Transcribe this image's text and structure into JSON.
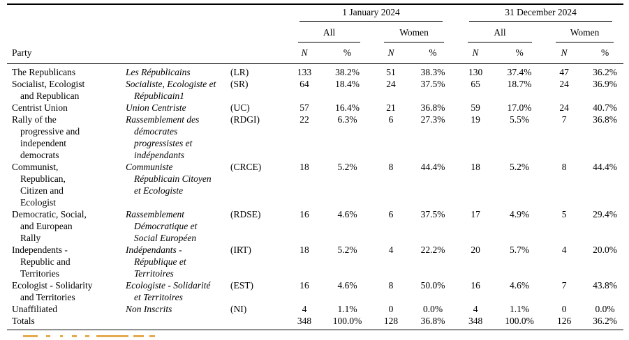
{
  "table": {
    "party_header": "Party",
    "group_headers": [
      "1 January 2024",
      "31 December 2024"
    ],
    "sub_headers": [
      "All",
      "Women",
      "All",
      "Women"
    ],
    "col_headers": [
      "N",
      "%",
      "N",
      "%",
      "N",
      "%",
      "N",
      "%"
    ],
    "rows": [
      {
        "english": [
          "The Republicans"
        ],
        "french": [
          "Les Républicains"
        ],
        "abbr": "(LR)",
        "values": [
          "133",
          "38.2%",
          "51",
          "38.3%",
          "130",
          "37.4%",
          "47",
          "36.2%"
        ]
      },
      {
        "english": [
          "Socialist, Ecologist",
          "and Republican"
        ],
        "french": [
          "Socialiste, Ecologiste et",
          "Républicain1"
        ],
        "abbr": "(SR)",
        "values": [
          "64",
          "18.4%",
          "24",
          "37.5%",
          "65",
          "18.7%",
          "24",
          "36.9%"
        ]
      },
      {
        "english": [
          "Centrist Union"
        ],
        "french": [
          "Union Centriste"
        ],
        "abbr": "(UC)",
        "values": [
          "57",
          "16.4%",
          "21",
          "36.8%",
          "59",
          "17.0%",
          "24",
          "40.7%"
        ]
      },
      {
        "english": [
          "Rally of the",
          "progressive and",
          "independent",
          "democrats"
        ],
        "french": [
          "Rassemblement des",
          "démocrates",
          "progressistes et",
          "indépendants"
        ],
        "abbr": "(RDGI)",
        "values": [
          "22",
          "6.3%",
          "6",
          "27.3%",
          "19",
          "5.5%",
          "7",
          "36.8%"
        ]
      },
      {
        "english": [
          "Communist,",
          "Republican,",
          "Citizen and",
          "Ecologist"
        ],
        "french": [
          "Communiste",
          "Républicain Citoyen",
          "et Ecologiste"
        ],
        "abbr": "(CRCE)",
        "values": [
          "18",
          "5.2%",
          "8",
          "44.4%",
          "18",
          "5.2%",
          "8",
          "44.4%"
        ]
      },
      {
        "english": [
          "Democratic, Social,",
          "and European",
          "Rally"
        ],
        "french": [
          "Rassemblement",
          "Démocratique et",
          "Social Européen"
        ],
        "abbr": "(RDSE)",
        "values": [
          "16",
          "4.6%",
          "6",
          "37.5%",
          "17",
          "4.9%",
          "5",
          "29.4%"
        ]
      },
      {
        "english": [
          "Independents -",
          "Republic and",
          "Territories"
        ],
        "french": [
          "Indépendants -",
          "République et",
          "Territoires"
        ],
        "abbr": "(IRT)",
        "values": [
          "18",
          "5.2%",
          "4",
          "22.2%",
          "20",
          "5.7%",
          "4",
          "20.0%"
        ]
      },
      {
        "english": [
          "Ecologist - Solidarity",
          "and Territories"
        ],
        "french": [
          "Ecologiste - Solidarité",
          "et Territoires"
        ],
        "abbr": "(EST)",
        "values": [
          "16",
          "4.6%",
          "8",
          "50.0%",
          "16",
          "4.6%",
          "7",
          "43.8%"
        ]
      },
      {
        "english": [
          "Unaffiliated"
        ],
        "french": [
          "Non Inscrits"
        ],
        "abbr": "(NI)",
        "values": [
          "4",
          "1.1%",
          "0",
          "0.0%",
          "4",
          "1.1%",
          "0",
          "0.0%"
        ]
      },
      {
        "english": [
          "Totals"
        ],
        "french": [],
        "abbr": "",
        "values": [
          "348",
          "100.0%",
          "128",
          "36.8%",
          "348",
          "100.0%",
          "126",
          "36.2%"
        ]
      }
    ]
  },
  "colors": {
    "rule": "#000000",
    "text": "#000000",
    "note_fragment": "#e6aa4e"
  }
}
